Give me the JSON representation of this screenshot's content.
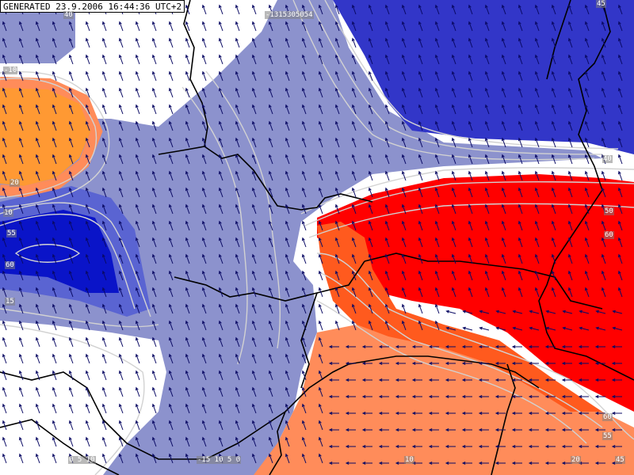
{
  "header": {
    "generated_stamp": "GENERATED 23.9.2006 16:44:36 UTC+2"
  },
  "colors": {
    "deep_blue": "#3236c8",
    "mid_blue": "#0a14c8",
    "light_blue": "#8c92cd",
    "red": "#ff0000",
    "orange": "#ff9933",
    "salmon": "#ff8c5a",
    "contour": "#d2d2d2",
    "arrow": "#0a0a64",
    "border": "#000000"
  },
  "contour_labels": {
    "top_left": "40",
    "top_center": "-1315305054",
    "top_right": "45",
    "left_1": "-10",
    "left_2": "20",
    "left_3": "10",
    "left_4": "55",
    "left_5": "60",
    "left_6": "15",
    "right_1": "40",
    "right_2": "50",
    "right_3": "60",
    "bottom_left": "0 5 10",
    "bottom_center": "-15 10 5 0",
    "bottom_mid": "10",
    "bottom_right_1": "20",
    "bottom_right_2": "60",
    "bottom_right_3": "45",
    "bottom_right_4": "55"
  }
}
